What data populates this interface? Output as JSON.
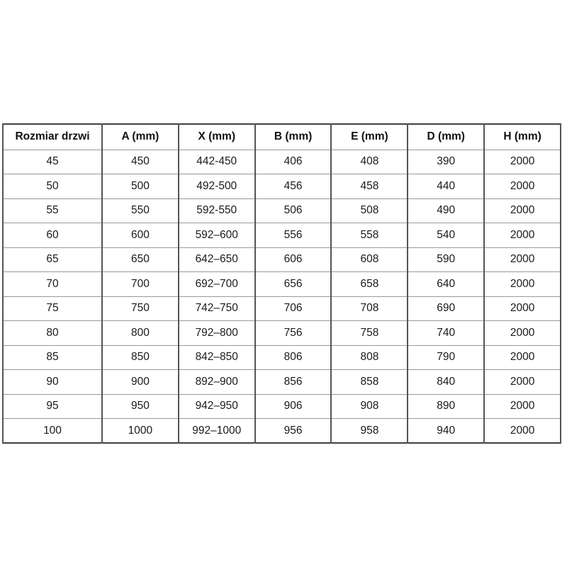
{
  "chart_data": {
    "type": "table",
    "columns": [
      "Rozmiar drzwi",
      "A (mm)",
      "X (mm)",
      "B (mm)",
      "E (mm)",
      "D (mm)",
      "H (mm)"
    ],
    "rows": [
      [
        "45",
        "450",
        "442-450",
        "406",
        "408",
        "390",
        "2000"
      ],
      [
        "50",
        "500",
        "492-500",
        "456",
        "458",
        "440",
        "2000"
      ],
      [
        "55",
        "550",
        "592-550",
        "506",
        "508",
        "490",
        "2000"
      ],
      [
        "60",
        "600",
        "592–600",
        "556",
        "558",
        "540",
        "2000"
      ],
      [
        "65",
        "650",
        "642–650",
        "606",
        "608",
        "590",
        "2000"
      ],
      [
        "70",
        "700",
        "692–700",
        "656",
        "658",
        "640",
        "2000"
      ],
      [
        "75",
        "750",
        "742–750",
        "706",
        "708",
        "690",
        "2000"
      ],
      [
        "80",
        "800",
        "792–800",
        "756",
        "758",
        "740",
        "2000"
      ],
      [
        "85",
        "850",
        "842–850",
        "806",
        "808",
        "790",
        "2000"
      ],
      [
        "90",
        "900",
        "892–900",
        "856",
        "858",
        "840",
        "2000"
      ],
      [
        "95",
        "950",
        "942–950",
        "906",
        "908",
        "890",
        "2000"
      ],
      [
        "100",
        "1000",
        "992–1000",
        "956",
        "958",
        "940",
        "2000"
      ]
    ],
    "layout": {
      "grid": true,
      "header_bold": true,
      "text_align": "center"
    }
  },
  "colors": {
    "background": "#ffffff",
    "text": "#1a1a1a",
    "border_outer": "#404040",
    "border_vertical": "#555555",
    "border_horizontal": "#999999"
  }
}
